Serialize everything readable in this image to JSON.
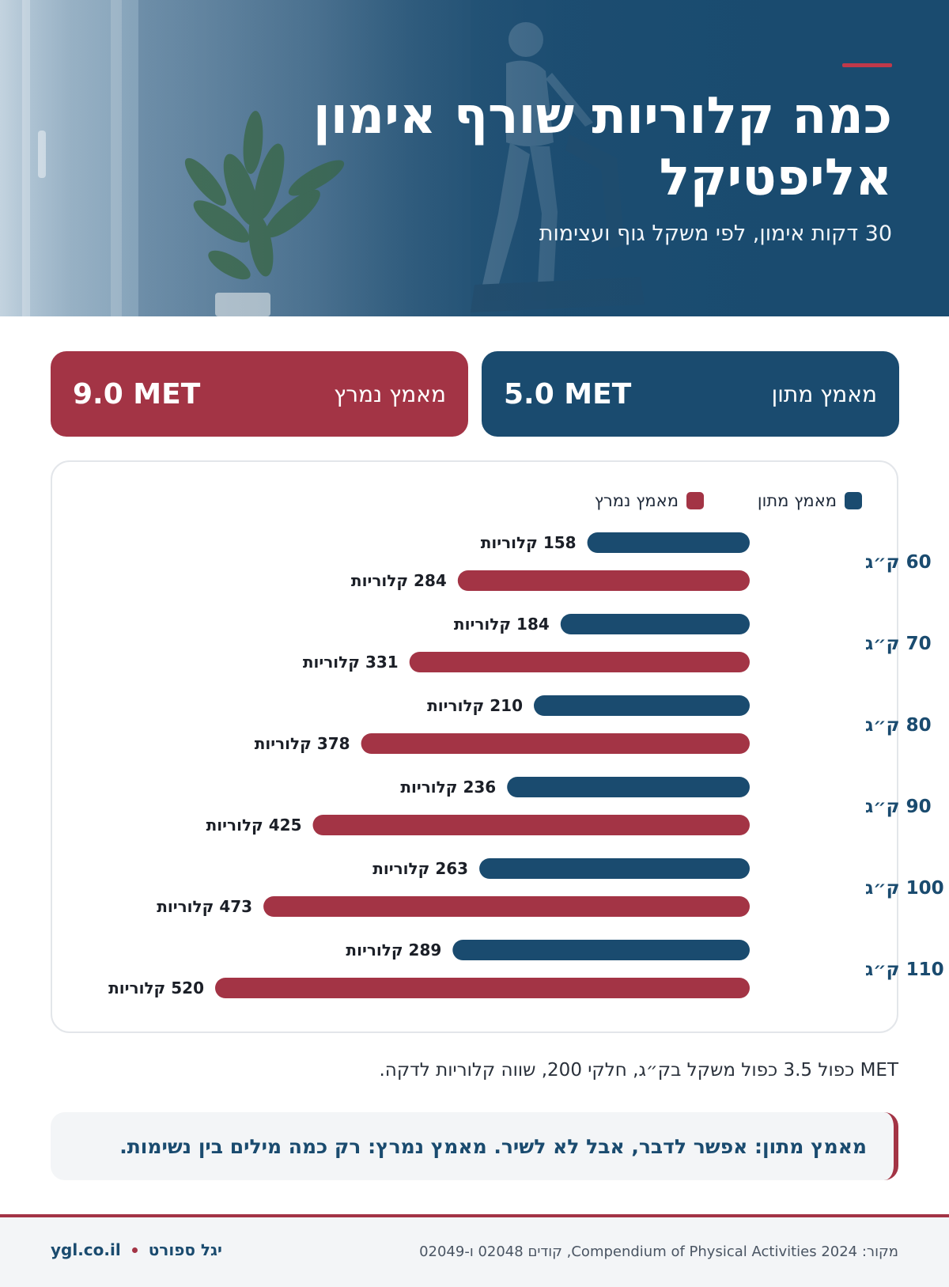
{
  "hero": {
    "title": "כמה קלוריות שורף אימון אליפטיקל",
    "subtitle": "30 דקות אימון, לפי משקל גוף ועצימות"
  },
  "met_cards": {
    "moderate": {
      "label": "מאמץ מתון",
      "value": "5.0 MET",
      "color": "#1a4b6f"
    },
    "vigorous": {
      "label": "מאמץ נמרץ",
      "value": "9.0 MET",
      "color": "#a33445"
    }
  },
  "chart_data": {
    "type": "bar",
    "orientation": "horizontal",
    "categories": [
      "60 ק״ג",
      "70 ק״ג",
      "80 ק״ג",
      "90 ק״ג",
      "100 ק״ג",
      "110 ק״ג"
    ],
    "series": [
      {
        "name": "מאמץ מתון",
        "color": "#1a4b6f",
        "values": [
          158,
          184,
          210,
          236,
          263,
          289
        ],
        "labels": [
          "158 קלוריות",
          "184 קלוריות",
          "210 קלוריות",
          "236 קלוריות",
          "263 קלוריות",
          "289 קלוריות"
        ]
      },
      {
        "name": "מאמץ נמרץ",
        "color": "#a33445",
        "values": [
          284,
          331,
          378,
          425,
          473,
          520
        ],
        "labels": [
          "284 קלוריות",
          "331 קלוריות",
          "378 קלוריות",
          "425 קלוריות",
          "473 קלוריות",
          "520 קלוריות"
        ]
      }
    ],
    "xlim": [
      0,
      550
    ],
    "legend": "top-right",
    "grid": false
  },
  "formula": "MET כפול 3.5 כפול משקל בק״ג, חלקי 200, שווה קלוריות לדקה.",
  "tip": "מאמץ מתון: אפשר לדבר, אבל לא לשיר. מאמץ נמרץ: רק כמה מילים בין נשימות.",
  "footer": {
    "source": "מקור: Compendium of Physical Activities 2024, קודים 02048 ו-02049",
    "brand_name": "יגל ספורט",
    "site": "ygl.co.il"
  }
}
